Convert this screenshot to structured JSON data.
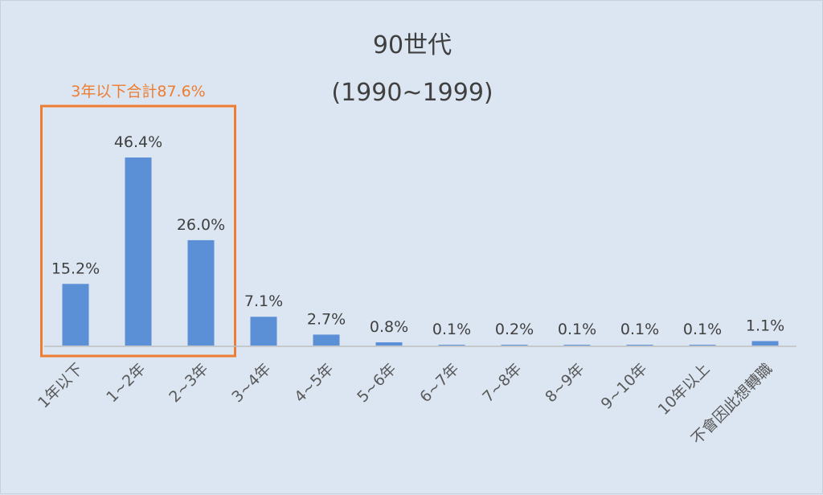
{
  "chart_data": {
    "type": "bar",
    "title": "90世代",
    "subtitle": "(1990~1999)",
    "categories": [
      "1年以下",
      "1~2年",
      "2~3年",
      "3~4年",
      "4~5年",
      "5~6年",
      "6~7年",
      "7~8年",
      "8~9年",
      "9~10年",
      "10年以上",
      "不會因此想轉職"
    ],
    "values": [
      15.2,
      46.4,
      26.0,
      7.1,
      2.7,
      0.8,
      0.1,
      0.2,
      0.1,
      0.1,
      0.1,
      1.1
    ],
    "value_labels": [
      "15.2%",
      "46.4%",
      "26.0%",
      "7.1%",
      "2.7%",
      "0.8%",
      "0.1%",
      "0.2%",
      "0.1%",
      "0.1%",
      "0.1%",
      "1.1%"
    ],
    "ylim": [
      0,
      50
    ],
    "grid": false,
    "legend": false,
    "annotation": {
      "text": "3年以下合計87.6%",
      "covers_categories": [
        "1年以下",
        "1~2年",
        "2~3年"
      ]
    }
  },
  "colors": {
    "bar": "#5b8fd6",
    "annotation": "#ed7d31",
    "axis": "#bfbfbf",
    "background": "#dce6f2"
  }
}
